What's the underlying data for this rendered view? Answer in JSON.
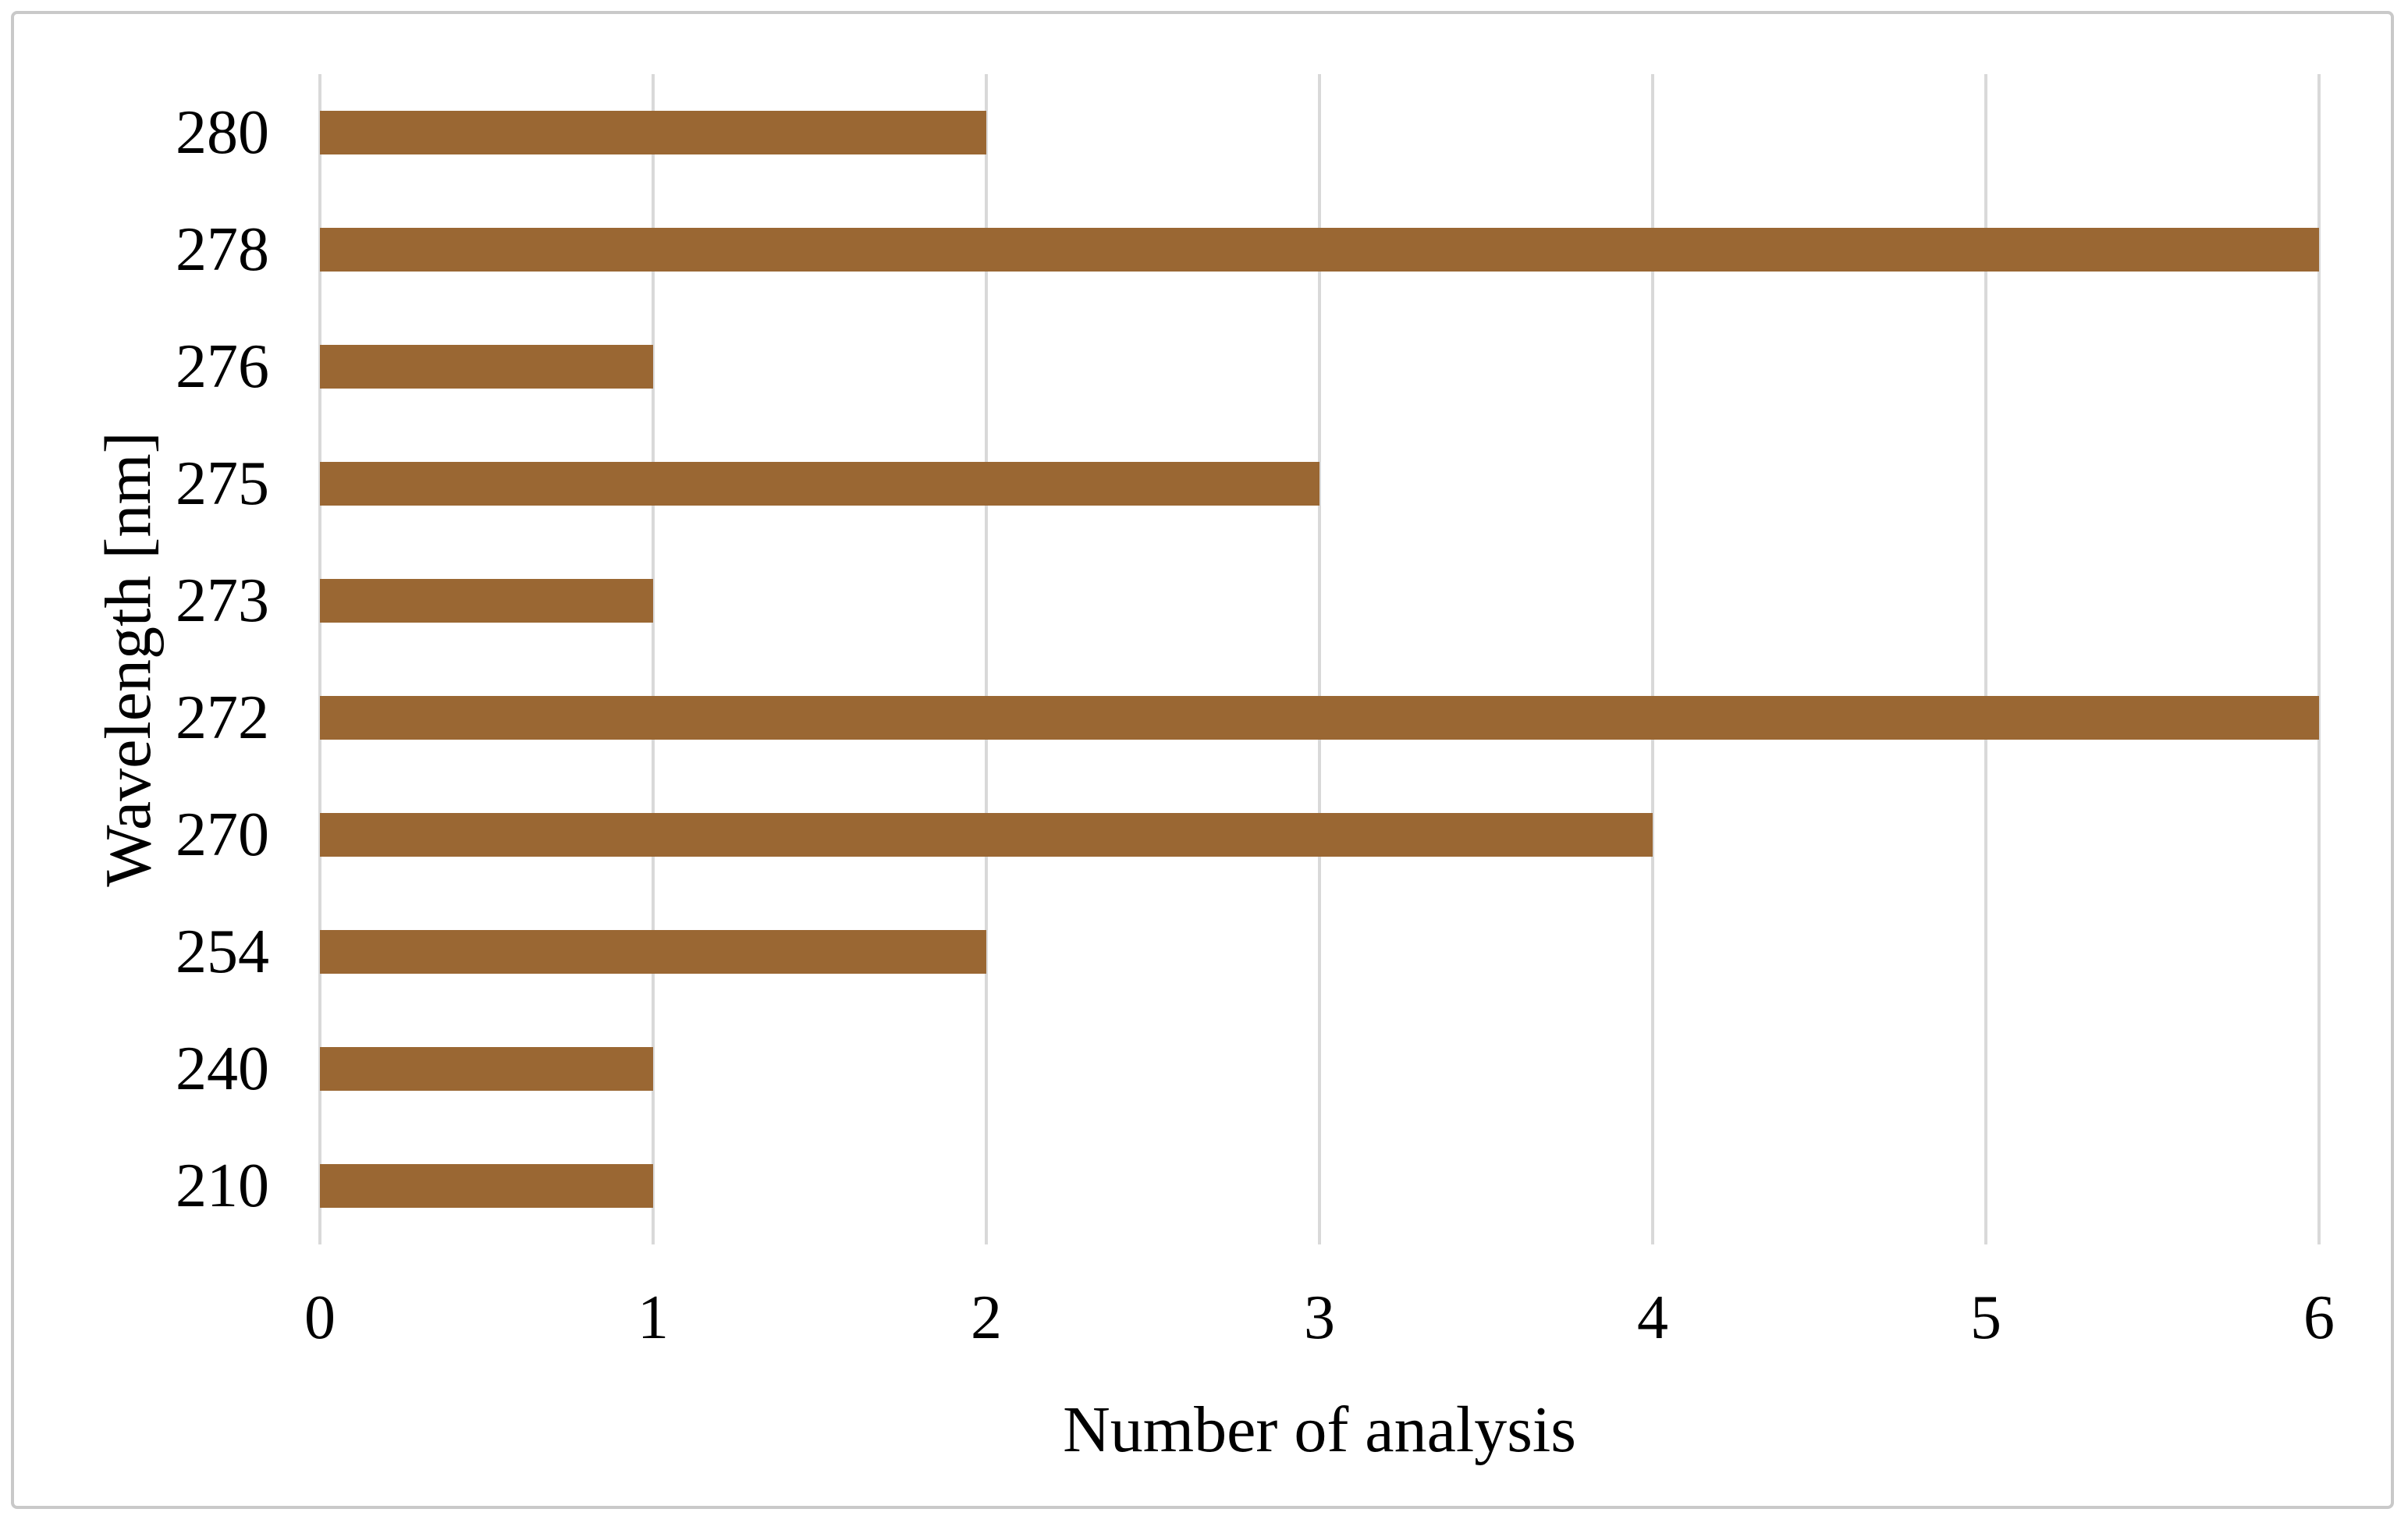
{
  "figure": {
    "background": "#FFFFFF",
    "border_color": "#C9C9C9"
  },
  "chart_data": {
    "type": "bar",
    "orientation": "horizontal",
    "title": "",
    "categories": [
      "280",
      "278",
      "276",
      "275",
      "273",
      "272",
      "270",
      "254",
      "240",
      "210"
    ],
    "values": [
      2,
      6,
      1,
      3,
      1,
      6,
      4,
      2,
      1,
      1
    ],
    "xlabel": "Number of analysis",
    "ylabel": "Wavelength [nm]",
    "xlim": [
      0,
      6
    ],
    "xticks": [
      "0",
      "1",
      "2",
      "3",
      "4",
      "5",
      "6"
    ],
    "bar_color": "#9A6733",
    "gridline_color": "#D9D9D9",
    "axis_line_color": "#D9D9D9",
    "text_color": "#000000",
    "grid": "vertical",
    "legend_position": "none"
  }
}
